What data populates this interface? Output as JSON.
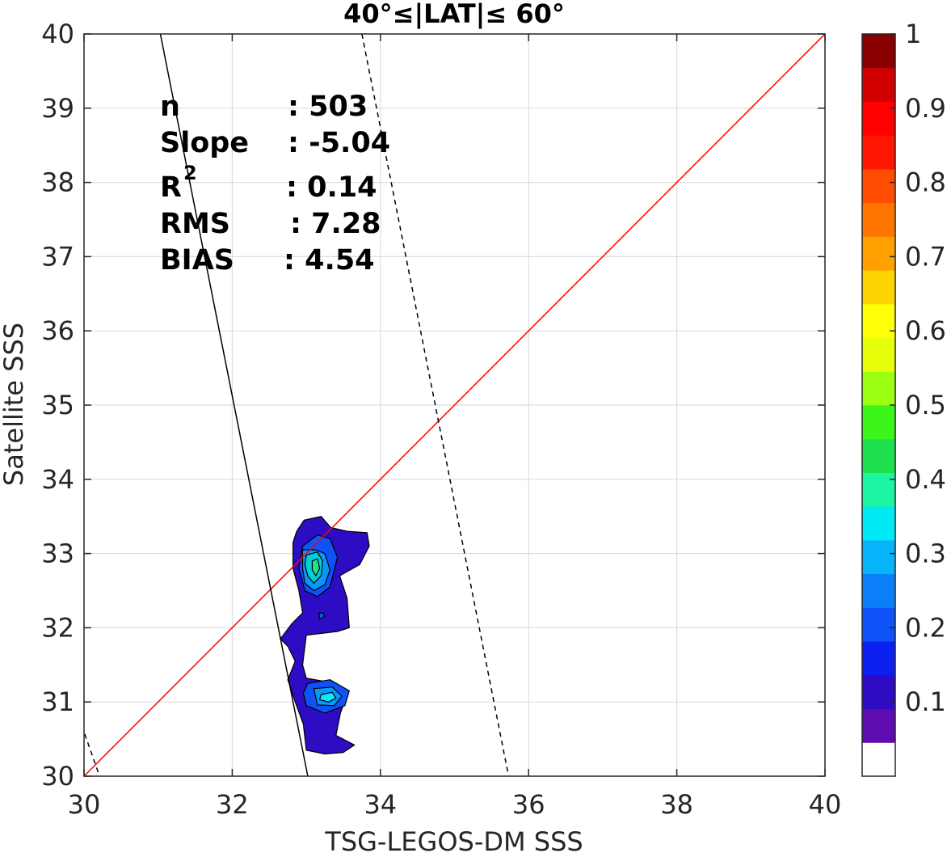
{
  "chart_data": {
    "type": "contour",
    "title": "40°≤|LAT|≤ 60°",
    "xlabel": "TSG-LEGOS-DM SSS",
    "ylabel": "Satellite SSS",
    "xlim": [
      30,
      40
    ],
    "ylim": [
      30,
      40
    ],
    "xticks": [
      "30",
      "32",
      "34",
      "36",
      "38",
      "40"
    ],
    "yticks": [
      "30",
      "31",
      "32",
      "33",
      "34",
      "35",
      "36",
      "37",
      "38",
      "39",
      "40"
    ],
    "grid": true,
    "stats": {
      "n_label": "n",
      "n_value": ": 503",
      "slope_label": "Slope",
      "slope_value": ": -5.04",
      "r2_label": "R",
      "r2_sup": "2",
      "r2_value": ": 0.14",
      "rms_label": "RMS",
      "rms_value": ": 7.28",
      "bias_label": "BIAS",
      "bias_value": ": 4.54"
    },
    "lines": {
      "identity": {
        "points": [
          [
            30,
            30
          ],
          [
            40,
            40
          ]
        ],
        "color": "#ff0000"
      },
      "fit": {
        "points": [
          [
            31.03,
            40
          ],
          [
            33.02,
            30
          ]
        ],
        "color": "#000000"
      },
      "fit_offset_upper": {
        "points": [
          [
            33.75,
            40
          ],
          [
            35.73,
            30
          ]
        ],
        "color": "#000000",
        "dash": true
      },
      "fit_offset_lower": {
        "points": [
          [
            29.85,
            31.02
          ],
          [
            30.21,
            30
          ]
        ],
        "color": "#000000",
        "dash": true
      }
    },
    "contours": [
      {
        "level": 0.05,
        "color": "#2e0cc4",
        "points": [
          [
            32.97,
            33.45
          ],
          [
            33.2,
            33.5
          ],
          [
            33.33,
            33.35
          ],
          [
            33.55,
            33.3
          ],
          [
            33.82,
            33.28
          ],
          [
            33.85,
            33.1
          ],
          [
            33.72,
            32.85
          ],
          [
            33.45,
            32.7
          ],
          [
            33.55,
            32.4
          ],
          [
            33.58,
            32.0
          ],
          [
            33.42,
            31.95
          ],
          [
            33.0,
            31.9
          ],
          [
            32.95,
            31.5
          ],
          [
            33.0,
            31.32
          ],
          [
            33.4,
            31.25
          ],
          [
            33.55,
            31.1
          ],
          [
            33.46,
            30.85
          ],
          [
            33.4,
            30.55
          ],
          [
            33.65,
            30.42
          ],
          [
            33.5,
            30.32
          ],
          [
            33.25,
            30.3
          ],
          [
            33.0,
            30.35
          ],
          [
            32.96,
            30.7
          ],
          [
            32.85,
            31.0
          ],
          [
            32.75,
            31.3
          ],
          [
            32.85,
            31.55
          ],
          [
            32.75,
            31.75
          ],
          [
            32.65,
            31.85
          ],
          [
            32.8,
            32.05
          ],
          [
            32.95,
            32.2
          ],
          [
            32.9,
            32.5
          ],
          [
            32.82,
            32.8
          ],
          [
            32.82,
            33.15
          ],
          [
            32.87,
            33.3
          ]
        ]
      },
      {
        "level": 0.15,
        "color": "#0d53f8",
        "points": [
          [
            32.95,
            33.1
          ],
          [
            33.15,
            33.25
          ],
          [
            33.32,
            33.2
          ],
          [
            33.42,
            32.95
          ],
          [
            33.32,
            32.55
          ],
          [
            33.15,
            32.42
          ],
          [
            32.98,
            32.5
          ],
          [
            32.9,
            32.8
          ]
        ]
      },
      {
        "level": 0.15,
        "color": "#0d53f8",
        "points": [
          [
            33.02,
            31.25
          ],
          [
            33.32,
            31.3
          ],
          [
            33.58,
            31.15
          ],
          [
            33.52,
            30.95
          ],
          [
            33.25,
            30.85
          ],
          [
            33.0,
            30.95
          ],
          [
            32.96,
            31.12
          ]
        ]
      },
      {
        "level": 0.25,
        "color": "#0a96fa",
        "points": [
          [
            32.95,
            33.05
          ],
          [
            33.12,
            33.05
          ],
          [
            33.25,
            33.0
          ],
          [
            33.32,
            32.78
          ],
          [
            33.25,
            32.58
          ],
          [
            33.1,
            32.5
          ],
          [
            32.98,
            32.6
          ],
          [
            32.95,
            32.8
          ]
        ]
      },
      {
        "level": 0.25,
        "color": "#0a96fa",
        "points": [
          [
            33.1,
            31.18
          ],
          [
            33.35,
            31.2
          ],
          [
            33.48,
            31.08
          ],
          [
            33.38,
            30.95
          ],
          [
            33.15,
            30.96
          ]
        ]
      },
      {
        "level": 0.35,
        "color": "#00cfd6",
        "points": [
          [
            33.0,
            32.98
          ],
          [
            33.15,
            33.02
          ],
          [
            33.22,
            32.9
          ],
          [
            33.2,
            32.7
          ],
          [
            33.1,
            32.6
          ],
          [
            33.02,
            32.7
          ],
          [
            32.98,
            32.85
          ]
        ]
      },
      {
        "level": 0.35,
        "color": "#0ae9fb",
        "points": [
          [
            33.2,
            31.1
          ],
          [
            33.35,
            31.13
          ],
          [
            33.4,
            31.05
          ],
          [
            33.3,
            31.0
          ],
          [
            33.18,
            31.03
          ]
        ]
      },
      {
        "level": 0.45,
        "color": "#22e38e",
        "points": [
          [
            33.08,
            32.9
          ],
          [
            33.15,
            32.93
          ],
          [
            33.18,
            32.8
          ],
          [
            33.13,
            32.7
          ],
          [
            33.08,
            32.78
          ]
        ]
      },
      {
        "level": 0.15,
        "color": "#0d53f8",
        "points": [
          [
            33.17,
            32.2
          ],
          [
            33.22,
            32.2
          ],
          [
            33.25,
            32.15
          ],
          [
            33.18,
            32.12
          ]
        ]
      }
    ],
    "colorbar": {
      "ticks": [
        "0.1",
        "0.2",
        "0.3",
        "0.4",
        "0.5",
        "0.6",
        "0.7",
        "0.8",
        "0.9",
        "1"
      ],
      "colors": [
        "#ffffff",
        "#5e0bb0",
        "#2e0cc4",
        "#0c20f0",
        "#0d53f8",
        "#0a7ff8",
        "#05b4f9",
        "#00eaf6",
        "#1cf6a2",
        "#1ee04d",
        "#3cf51a",
        "#9bff12",
        "#e8ff0b",
        "#ffff07",
        "#ffd501",
        "#ff9f00",
        "#ff7500",
        "#ff4c00",
        "#ff1600",
        "#ff0000",
        "#d20000",
        "#8a0000"
      ]
    }
  }
}
